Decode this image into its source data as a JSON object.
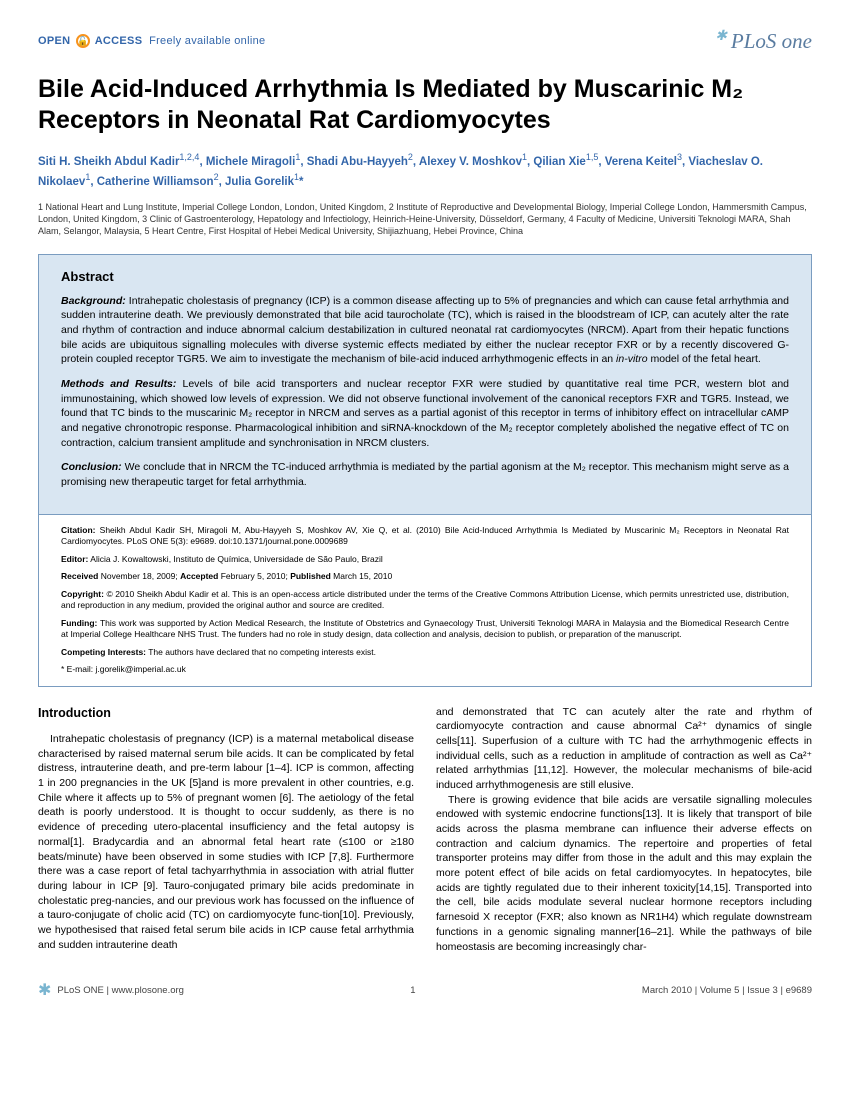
{
  "header": {
    "open_access_prefix": "OPEN",
    "open_access_suffix": "ACCESS",
    "open_access_tagline": "Freely available online",
    "journal_name": "PLoS one"
  },
  "title": "Bile Acid-Induced Arrhythmia Is Mediated by Muscarinic M₂ Receptors in Neonatal Rat Cardiomyocytes",
  "authors_html": "Siti H. Sheikh Abdul Kadir<sup>1,2,4</sup>, Michele Miragoli<sup>1</sup>, Shadi Abu-Hayyeh<sup>2</sup>, Alexey V. Moshkov<sup>1</sup>, Qilian Xie<sup>1,5</sup>, Verena Keitel<sup>3</sup>, Viacheslav O. Nikolaev<sup>1</sup>, Catherine Williamson<sup>2</sup>, Julia Gorelik<sup>1</sup>*",
  "affiliations": "1 National Heart and Lung Institute, Imperial College London, London, United Kingdom, 2 Institute of Reproductive and Developmental Biology, Imperial College London, Hammersmith Campus, London, United Kingdom, 3 Clinic of Gastroenterology, Hepatology and Infectiology, Heinrich-Heine-University, Düsseldorf, Germany, 4 Faculty of Medicine, Universiti Teknologi MARA, Shah Alam, Selangor, Malaysia, 5 Heart Centre, First Hospital of Hebei Medical University, Shijiazhuang, Hebei Province, China",
  "abstract": {
    "heading": "Abstract",
    "background_label": "Background:",
    "background_text": " Intrahepatic cholestasis of pregnancy (ICP) is a common disease affecting up to 5% of pregnancies and which can cause fetal arrhythmia and sudden intrauterine death. We previously demonstrated that bile acid taurocholate (TC), which is raised in the bloodstream of ICP, can acutely alter the rate and rhythm of contraction and induce abnormal calcium destabilization in cultured neonatal rat cardiomyocytes (NRCM). Apart from their hepatic functions bile acids are ubiquitous signalling molecules with diverse systemic effects mediated by either the nuclear receptor FXR or by a recently discovered G-protein coupled receptor TGR5. We aim to investigate the mechanism of bile-acid induced arrhythmogenic effects in an ",
    "background_italic": "in-vitro",
    "background_tail": " model of the fetal heart.",
    "methods_label": "Methods and Results:",
    "methods_text": " Levels of bile acid transporters and nuclear receptor FXR were studied by quantitative real time PCR, western blot and immunostaining, which showed low levels of expression. We did not observe functional involvement of the canonical receptors FXR and TGR5. Instead, we found that TC binds to the muscarinic M₂ receptor in NRCM and serves as a partial agonist of this receptor in terms of inhibitory effect on intracellular cAMP and negative chronotropic response. Pharmacological inhibition and siRNA-knockdown of the M₂ receptor completely abolished the negative effect of TC on contraction, calcium transient amplitude and synchronisation in NRCM clusters.",
    "conclusion_label": "Conclusion:",
    "conclusion_text": " We conclude that in NRCM the TC-induced arrhythmia is mediated by the partial agonism at the M₂ receptor. This mechanism might serve as a promising new therapeutic target for fetal arrhythmia."
  },
  "meta": {
    "citation_label": "Citation:",
    "citation_text": " Sheikh Abdul Kadir SH, Miragoli M, Abu-Hayyeh S, Moshkov AV, Xie Q, et al. (2010) Bile Acid-Induced Arrhythmia Is Mediated by Muscarinic M₂ Receptors in Neonatal Rat Cardiomyocytes. PLoS ONE 5(3): e9689. doi:10.1371/journal.pone.0009689",
    "editor_label": "Editor:",
    "editor_text": " Alicia J. Kowaltowski, Instituto de Química, Universidade de São Paulo, Brazil",
    "received_label": "Received",
    "received_text": " November 18, 2009; ",
    "accepted_label": "Accepted",
    "accepted_text": " February 5, 2010; ",
    "published_label": "Published",
    "published_text": " March 15, 2010",
    "copyright_label": "Copyright:",
    "copyright_text": " © 2010 Sheikh Abdul Kadir et al. This is an open-access article distributed under the terms of the Creative Commons Attribution License, which permits unrestricted use, distribution, and reproduction in any medium, provided the original author and source are credited.",
    "funding_label": "Funding:",
    "funding_text": " This work was supported by Action Medical Research, the Institute of Obstetrics and Gynaecology Trust, Universiti Teknologi MARA in Malaysia and the Biomedical Research Centre at Imperial College Healthcare NHS Trust. The funders had no role in study design, data collection and analysis, decision to publish, or preparation of the manuscript.",
    "competing_label": "Competing Interests:",
    "competing_text": " The authors have declared that no competing interests exist.",
    "email_text": "* E-mail: j.gorelik@imperial.ac.uk"
  },
  "intro": {
    "heading": "Introduction",
    "col1_p1": "Intrahepatic cholestasis of pregnancy (ICP) is a maternal metabolical disease characterised by raised maternal serum bile acids. It can be complicated by fetal distress, intrauterine death, and pre-term labour [1–4]. ICP is common, affecting 1 in 200 pregnancies in the UK [5]and is more prevalent in other countries, e.g. Chile where it affects up to 5% of pregnant women [6]. The aetiology of the fetal death is poorly understood. It is thought to occur suddenly, as there is no evidence of preceding utero-placental insufficiency and the fetal autopsy is normal[1]. Bradycardia and an abnormal fetal heart rate (≤100 or ≥180 beats/minute) have been observed in some studies with ICP [7,8]. Furthermore there was a case report of fetal tachyarrhythmia in association with atrial flutter during labour in ICP [9]. Tauro-conjugated primary bile acids predominate in cholestatic preg-nancies, and our previous work has focussed on the influence of a tauro-conjugate of cholic acid (TC) on cardiomyocyte func-tion[10]. Previously, we hypothesised that raised fetal serum bile acids in ICP cause fetal arrhythmia and sudden intrauterine death",
    "col2_p1": "and demonstrated that TC can acutely alter the rate and rhythm of cardiomyocyte contraction and cause abnormal Ca²⁺ dynamics of single cells[11]. Superfusion of a culture with TC had the arrhythmogenic effects in individual cells, such as a reduction in amplitude of contraction as well as Ca²⁺ related arrhythmias [11,12]. However, the molecular mechanisms of bile-acid induced arrhythmogenesis are still elusive.",
    "col2_p2": "There is growing evidence that bile acids are versatile signalling molecules endowed with systemic endocrine functions[13]. It is likely that transport of bile acids across the plasma membrane can influence their adverse effects on contraction and calcium dynamics. The repertoire and properties of fetal transporter proteins may differ from those in the adult and this may explain the more potent effect of bile acids on fetal cardiomyocytes. In hepatocytes, bile acids are tightly regulated due to their inherent toxicity[14,15]. Transported into the cell, bile acids modulate several nuclear hormone receptors including farnesoid X receptor (FXR; also known as NR1H4) which regulate downstream functions in a genomic signaling manner[16–21]. While the pathways of bile homeostasis are becoming increasingly char-"
  },
  "footer": {
    "site": "PLoS ONE | www.plosone.org",
    "page": "1",
    "issue": "March 2010 | Volume 5 | Issue 3 | e9689"
  }
}
